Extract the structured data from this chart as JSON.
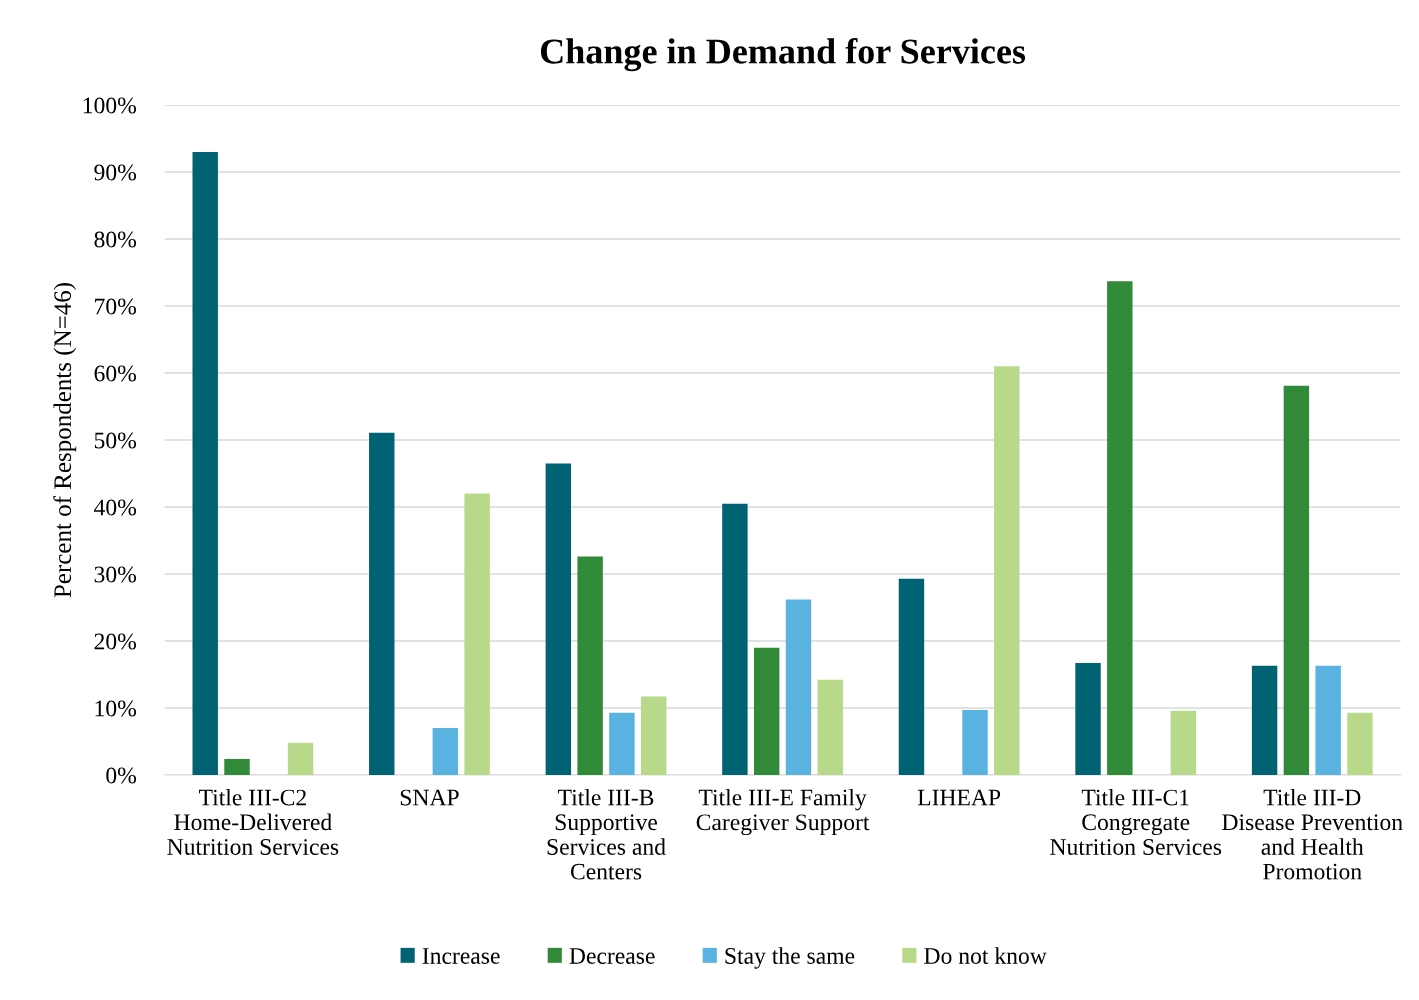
{
  "chart_data": {
    "type": "bar",
    "title": "Change in Demand for Services",
    "ylabel": "Percent of Respondents (N=46)",
    "categories": [
      "Title III-C2 Home-Delivered Nutrition Services",
      "SNAP",
      "Title III-B Supportive Services and Centers",
      "Title III-E Family Caregiver Support",
      "LIHEAP",
      "Title III-C1 Congregate Nutrition Services",
      "Title III-D Disease Prevention and Health Promotion"
    ],
    "series": [
      {
        "name": "Increase",
        "color": "#006272",
        "values": [
          93.0,
          51.1,
          46.5,
          40.5,
          29.3,
          16.7,
          16.3
        ]
      },
      {
        "name": "Decrease",
        "color": "#318a37",
        "values": [
          2.4,
          0,
          32.6,
          19.0,
          0,
          73.7,
          58.1
        ]
      },
      {
        "name": "Stay the same",
        "color": "#59b2e0",
        "values": [
          0,
          7.0,
          9.3,
          26.2,
          9.7,
          0,
          16.3
        ]
      },
      {
        "name": "Do not know",
        "color": "#b8d98a",
        "values": [
          4.8,
          42.0,
          11.7,
          14.2,
          61.0,
          9.6,
          9.3
        ]
      }
    ],
    "ylim": [
      0,
      100
    ],
    "yticks": [
      {
        "value": 0,
        "label": "0%"
      },
      {
        "value": 10,
        "label": "10%"
      },
      {
        "value": 20,
        "label": "20%"
      },
      {
        "value": 30,
        "label": "30%"
      },
      {
        "value": 40,
        "label": "40%"
      },
      {
        "value": 50,
        "label": "50%"
      },
      {
        "value": 60,
        "label": "60%"
      },
      {
        "value": 70,
        "label": "70%"
      },
      {
        "value": 80,
        "label": "80%"
      },
      {
        "value": 90,
        "label": "90%"
      },
      {
        "value": 100,
        "label": "100%"
      }
    ],
    "grid": "y",
    "legend": "bottom"
  }
}
